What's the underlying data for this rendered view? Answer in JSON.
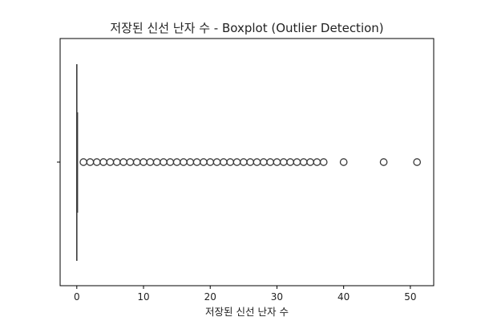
{
  "chart_data": {
    "type": "boxplot",
    "title": "저장된 신선 난자 수 - Boxplot (Outlier Detection)",
    "xlabel": "저장된 신선 난자 수",
    "ylabel": "",
    "orientation": "horizontal",
    "xlim": [
      -2.5,
      53.5
    ],
    "xticks": [
      0,
      10,
      20,
      30,
      40,
      50
    ],
    "grid": false,
    "box": {
      "q1": 0,
      "median": 0,
      "q3": 0,
      "whisker_low": 0,
      "whisker_high": 0
    },
    "outliers": [
      1,
      2,
      3,
      4,
      5,
      6,
      7,
      8,
      9,
      10,
      11,
      12,
      13,
      14,
      15,
      16,
      17,
      18,
      19,
      20,
      21,
      22,
      23,
      24,
      25,
      26,
      27,
      28,
      29,
      30,
      31,
      32,
      33,
      34,
      35,
      36,
      37,
      40,
      46,
      51
    ],
    "marker_color": "#3b3b3b"
  }
}
